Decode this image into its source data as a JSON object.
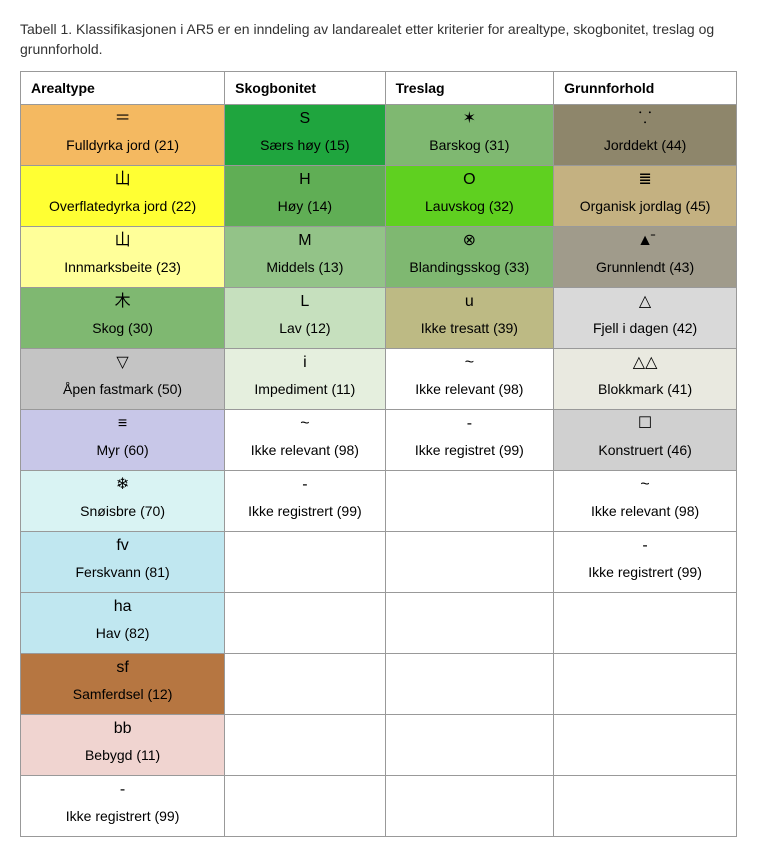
{
  "caption": "Tabell 1. Klassifikasjonen i AR5 er en inndeling av landarealet etter kriterier for arealtype, skogbonitet, treslag og grunnforhold.",
  "headers": [
    "Arealtype",
    "Skogbonitet",
    "Treslag",
    "Grunnforhold"
  ],
  "rows": [
    [
      {
        "symbol": "＝",
        "label": "Fulldyrka jord (21)",
        "bg": "#f4b961"
      },
      {
        "symbol": "S",
        "label": "Særs høy (15)",
        "bg": "#1fa53e"
      },
      {
        "symbol": "✶",
        "label": "Barskog (31)",
        "bg": "#7fb871"
      },
      {
        "symbol": "⸪",
        "label": "Jorddekt (44)",
        "bg": "#8e866b"
      }
    ],
    [
      {
        "symbol": "⼭",
        "label": "Overflatedyrka jord (22)",
        "bg": "#ffff33"
      },
      {
        "symbol": "H",
        "label": "Høy (14)",
        "bg": "#60ae55"
      },
      {
        "symbol": "O",
        "label": "Lauvskog (32)",
        "bg": "#5fd020"
      },
      {
        "symbol": "≣",
        "label": "Organisk jordlag (45)",
        "bg": "#c4b181"
      }
    ],
    [
      {
        "symbol": "⼭",
        "label": "Innmarksbeite (23)",
        "bg": "#ffff99"
      },
      {
        "symbol": "M",
        "label": "Middels (13)",
        "bg": "#93c388"
      },
      {
        "symbol": "⊗",
        "label": "Blandingsskog (33)",
        "bg": "#7fb871"
      },
      {
        "symbol": "▲̄",
        "label": "Grunnlendt (43)",
        "bg": "#a09b8b"
      }
    ],
    [
      {
        "symbol": "⽊",
        "label": "Skog (30)",
        "bg": "#7fb871"
      },
      {
        "symbol": "L",
        "label": "Lav (12)",
        "bg": "#c6e0be"
      },
      {
        "symbol": "u",
        "label": "Ikke tresatt (39)",
        "bg": "#bdba84"
      },
      {
        "symbol": "△",
        "label": "Fjell i dagen (42)",
        "bg": "#d9d9d9"
      }
    ],
    [
      {
        "symbol": "▽",
        "label": "Åpen fastmark (50)",
        "bg": "#c4c4c4"
      },
      {
        "symbol": "i",
        "label": "Impediment (11)",
        "bg": "#e5efde"
      },
      {
        "symbol": "~",
        "label": "Ikke relevant (98)",
        "bg": "#ffffff"
      },
      {
        "symbol": "△△",
        "label": "Blokkmark (41)",
        "bg": "#e9e9e0"
      }
    ],
    [
      {
        "symbol": "≡",
        "label": "Myr (60)",
        "bg": "#c8c7e8"
      },
      {
        "symbol": "~",
        "label": "Ikke relevant (98)",
        "bg": "#ffffff"
      },
      {
        "symbol": "-",
        "label": "Ikke registret (99)",
        "bg": "#ffffff"
      },
      {
        "symbol": "☐",
        "label": "Konstruert (46)",
        "bg": "#d0d0d0"
      }
    ],
    [
      {
        "symbol": "❄",
        "label": "Snøisbre (70)",
        "bg": "#d9f3f3"
      },
      {
        "symbol": "-",
        "label": "Ikke registrert (99)",
        "bg": "#ffffff"
      },
      null,
      {
        "symbol": "~",
        "label": "Ikke relevant (98)",
        "bg": "#ffffff"
      }
    ],
    [
      {
        "symbol": "fv",
        "label": "Ferskvann (81)",
        "bg": "#c0e7f0"
      },
      null,
      null,
      {
        "symbol": "-",
        "label": "Ikke registrert (99)",
        "bg": "#ffffff"
      }
    ],
    [
      {
        "symbol": "ha",
        "label": "Hav (82)",
        "bg": "#c0e7f0"
      },
      null,
      null,
      null
    ],
    [
      {
        "symbol": "sf",
        "label": "Samferdsel (12)",
        "bg": "#b67641"
      },
      null,
      null,
      null
    ],
    [
      {
        "symbol": "bb",
        "label": "Bebygd (11)",
        "bg": "#f0d4d0"
      },
      null,
      null,
      null
    ],
    [
      {
        "symbol": "-",
        "label": "Ikke registrert (99)",
        "bg": "#ffffff"
      },
      null,
      null,
      null
    ]
  ],
  "colors": {
    "border": "#999999",
    "text": "#222222"
  },
  "symbol_fontsize": 16,
  "label_fontsize": 14,
  "header_fontsize": 14
}
